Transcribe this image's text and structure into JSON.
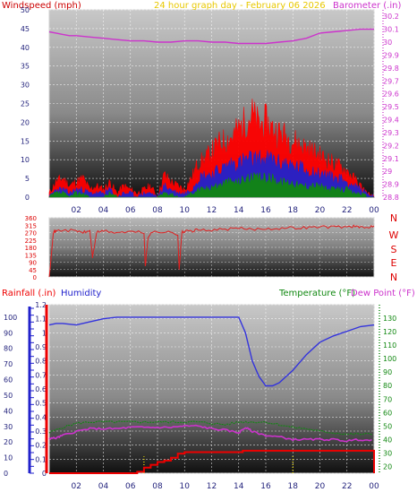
{
  "header": {
    "left_label": "Windspeed (mph)",
    "center_label": "24 hour graph day - February 06 2026",
    "right_label": "Barometer (.in)"
  },
  "colors": {
    "wind_label": "#cc0000",
    "center_label": "#e8c800",
    "barometer": "#cc33cc",
    "gust": "#ff0000",
    "avg": "#2222cc",
    "low": "#118811",
    "direction": "#e02020",
    "dir_labels": "#dd0000",
    "rain": "#ee0000",
    "rain_axis": "#ee0000",
    "humidity": "#3333dd",
    "humidity_axis": "#2222cc",
    "temperature": "#118811",
    "dewpoint": "#cc33cc",
    "dewpoint_label": "#cc33cc",
    "marker": "#ffee00",
    "grid": "#ffffff",
    "tick_text": "#1f1f7a"
  },
  "chart_data": [
    {
      "id": "wind_baro",
      "type": "line",
      "title": "24 hour graph day - February 06 2026",
      "x_ticks": [
        "02",
        "04",
        "06",
        "08",
        "10",
        "12",
        "14",
        "16",
        "18",
        "20",
        "22",
        "00"
      ],
      "y_left": {
        "label": "Windspeed (mph)",
        "ticks": [
          "0",
          "5",
          "10",
          "15",
          "20",
          "25",
          "30",
          "35",
          "40",
          "45",
          "50"
        ],
        "range": [
          0,
          50
        ]
      },
      "y_right": {
        "label": "Barometer (.in)",
        "ticks": [
          "28.8",
          "28.9",
          "29",
          "29.1",
          "29.2",
          "29.3",
          "29.4",
          "29.5",
          "29.6",
          "29.7",
          "29.8",
          "29.9",
          "30",
          "30.1",
          "30.2"
        ],
        "range": [
          28.8,
          30.25
        ]
      },
      "series": [
        {
          "name": "Barometer (.in)",
          "axis": "right",
          "x": [
            0,
            0.5,
            1,
            1.5,
            2,
            3,
            4,
            5,
            6,
            7,
            8,
            9,
            10,
            11,
            12,
            13,
            14,
            15,
            16,
            17,
            18,
            19,
            20,
            21,
            22,
            23,
            24
          ],
          "values": [
            30.08,
            30.07,
            30.06,
            30.05,
            30.05,
            30.04,
            30.03,
            30.02,
            30.01,
            30.01,
            30.0,
            30.0,
            30.01,
            30.01,
            30.0,
            30.0,
            29.99,
            29.99,
            29.99,
            30.0,
            30.01,
            30.03,
            30.07,
            30.08,
            30.09,
            30.1,
            30.1
          ]
        },
        {
          "name": "",
          "axis": "left",
          "x": [
            0,
            0.5,
            1,
            1.5,
            2,
            2.5,
            3,
            3.5,
            4,
            4.5,
            5,
            5.5,
            6,
            6.5,
            7,
            7.5,
            8,
            8.5,
            9,
            9.5,
            10,
            10.5,
            11,
            11.5,
            12,
            12.5,
            13,
            13.5,
            14,
            14.5,
            15,
            15.5,
            16,
            16.5,
            17,
            17.5,
            18,
            18.5,
            19,
            19.5,
            20,
            20.5,
            21,
            21.5,
            22,
            22.5,
            23,
            23.5,
            24
          ],
          "values": [
            1,
            4,
            5,
            3,
            4,
            5,
            2,
            3,
            2,
            4,
            1,
            3,
            2,
            1,
            2,
            3,
            0,
            6,
            4,
            3,
            2,
            5,
            9,
            10,
            12,
            14,
            15,
            16,
            18,
            20,
            22,
            19,
            20,
            18,
            17,
            16,
            15,
            14,
            13,
            12,
            11,
            10,
            9,
            8,
            7,
            5,
            3,
            1,
            0
          ]
        },
        {
          "name": "",
          "axis": "left",
          "x": [
            0,
            0.5,
            1,
            1.5,
            2,
            2.5,
            3,
            3.5,
            4,
            4.5,
            5,
            5.5,
            6,
            6.5,
            7,
            7.5,
            8,
            8.5,
            9,
            9.5,
            10,
            10.5,
            11,
            11.5,
            12,
            12.5,
            13,
            13.5,
            14,
            14.5,
            15,
            15.5,
            16,
            16.5,
            17,
            17.5,
            18,
            18.5,
            19,
            19.5,
            20,
            20.5,
            21,
            21.5,
            22,
            22.5,
            23,
            23.5,
            24
          ],
          "values": [
            0,
            2,
            2,
            1,
            2,
            2,
            1,
            1,
            1,
            2,
            0,
            1,
            1,
            0,
            1,
            1,
            0,
            3,
            2,
            1,
            1,
            2,
            5,
            6,
            6,
            7,
            8,
            9,
            9,
            10,
            10,
            10,
            10,
            10,
            9,
            9,
            8,
            8,
            7,
            7,
            6,
            6,
            5,
            5,
            4,
            3,
            2,
            1,
            0
          ]
        },
        {
          "name": "",
          "axis": "left",
          "x": [
            0,
            0.5,
            1,
            1.5,
            2,
            2.5,
            3,
            3.5,
            4,
            4.5,
            5,
            5.5,
            6,
            6.5,
            7,
            7.5,
            8,
            8.5,
            9,
            9.5,
            10,
            10.5,
            11,
            11.5,
            12,
            12.5,
            13,
            13.5,
            14,
            14.5,
            15,
            15.5,
            16,
            16.5,
            17,
            17.5,
            18,
            18.5,
            19,
            19.5,
            20,
            20.5,
            21,
            21.5,
            22,
            22.5,
            23,
            23.5,
            24
          ],
          "values": [
            0,
            1,
            1,
            0,
            1,
            1,
            0,
            0,
            0,
            1,
            0,
            0,
            0,
            0,
            0,
            0,
            0,
            1,
            1,
            0,
            0,
            1,
            2,
            2,
            3,
            3,
            4,
            4,
            4,
            5,
            5,
            5,
            5,
            5,
            4,
            4,
            4,
            3,
            3,
            3,
            3,
            2,
            2,
            2,
            2,
            1,
            1,
            0,
            0
          ]
        }
      ]
    },
    {
      "id": "direction",
      "type": "line",
      "x_ticks": [
        "02",
        "04",
        "06",
        "08",
        "10",
        "12",
        "14",
        "16",
        "18",
        "20",
        "22",
        "00"
      ],
      "y_left": {
        "ticks": [
          "0",
          "45",
          "90",
          "135",
          "180",
          "225",
          "270",
          "315",
          "360"
        ],
        "range": [
          0,
          360
        ]
      },
      "dir_labels": [
        "N",
        "W",
        "S",
        "E",
        "N"
      ],
      "series": [
        {
          "name": "",
          "x": [
            0,
            0.3,
            0.5,
            1,
            2,
            2.5,
            3,
            3.2,
            3.5,
            4,
            5,
            6,
            7,
            7.1,
            7.3,
            7.5,
            8,
            9,
            9.5,
            9.6,
            9.8,
            10,
            10.5,
            11,
            12,
            13,
            14,
            15,
            16,
            17,
            18,
            19,
            20,
            21,
            22,
            22.5,
            23,
            23.5,
            24
          ],
          "values": [
            0,
            270,
            280,
            285,
            280,
            270,
            280,
            120,
            270,
            280,
            270,
            275,
            270,
            60,
            240,
            270,
            275,
            270,
            260,
            40,
            270,
            275,
            280,
            285,
            285,
            290,
            295,
            290,
            295,
            295,
            300,
            300,
            305,
            305,
            305,
            310,
            300,
            300,
            315
          ]
        }
      ]
    },
    {
      "id": "rain_hum_temp",
      "type": "line",
      "x_ticks": [
        "02",
        "04",
        "06",
        "08",
        "10",
        "12",
        "14",
        "16",
        "18",
        "20",
        "22",
        "00"
      ],
      "y_left": {
        "label": "Rainfall (.in)",
        "ticks": [
          "0",
          "0.1",
          "0.2",
          "0.3",
          "0.4",
          "0.5",
          "0.6",
          "0.7",
          "0.8",
          "0.9",
          "1",
          "1.1",
          "1.2"
        ],
        "range": [
          0,
          1.2
        ]
      },
      "y_left_outer": {
        "label": "Humidity",
        "ticks": [
          "0",
          "10",
          "20",
          "30",
          "40",
          "50",
          "60",
          "70",
          "80",
          "90",
          "100"
        ],
        "range": [
          0,
          108
        ]
      },
      "y_right": {
        "label": "Temperature (°F)",
        "ticks": [
          "20",
          "30",
          "40",
          "50",
          "60",
          "70",
          "80",
          "90",
          "100",
          "110",
          "120",
          "130"
        ],
        "range": [
          15,
          140
        ]
      },
      "right_label_2": "Dew Point (°F)",
      "series": [
        {
          "name": "Humidity",
          "axis": "left_outer",
          "x": [
            0,
            0.5,
            1,
            2,
            3,
            4,
            5,
            6,
            7,
            8,
            9,
            10,
            11,
            12,
            13,
            14,
            14.5,
            15,
            15.5,
            16,
            16.5,
            17,
            18,
            19,
            20,
            21,
            22,
            23,
            24
          ],
          "values": [
            95,
            96,
            96,
            95,
            97,
            99,
            100,
            100,
            100,
            100,
            100,
            100,
            100,
            100,
            100,
            100,
            90,
            72,
            62,
            56,
            56,
            58,
            66,
            76,
            84,
            88,
            91,
            94,
            95
          ]
        },
        {
          "name": "Temperature (°F)",
          "axis": "right",
          "x": [
            0,
            1,
            2,
            3,
            4,
            5,
            6,
            7,
            8,
            9,
            10,
            11,
            12,
            13,
            14,
            15,
            16,
            17,
            18,
            19,
            20,
            21,
            22,
            23,
            24
          ],
          "values": [
            45,
            49,
            52,
            53,
            53,
            53,
            53,
            53,
            53,
            53,
            53,
            53,
            52,
            51,
            53,
            53,
            53,
            51,
            49,
            48,
            46,
            45,
            44,
            44,
            44
          ]
        },
        {
          "name": "Dew Point (°F)",
          "axis": "right",
          "x": [
            0,
            0.5,
            1,
            2,
            3,
            4,
            5,
            6,
            7,
            8,
            9,
            10,
            11,
            12,
            13,
            14,
            14.5,
            15,
            16,
            17,
            18,
            19,
            20,
            21,
            22,
            23,
            24
          ],
          "values": [
            41,
            41,
            43,
            46,
            48,
            48,
            48,
            49,
            49,
            49,
            49,
            50,
            50,
            48,
            47,
            45,
            49,
            46,
            43,
            42,
            40,
            40,
            40,
            40,
            39,
            40,
            39
          ]
        },
        {
          "name": "Rainfall (.in)",
          "axis": "left",
          "x": [
            0,
            6,
            6.5,
            7,
            7.5,
            8,
            8.5,
            9,
            9.5,
            10,
            14,
            14.3,
            15,
            16,
            17,
            18,
            19,
            20,
            21,
            22,
            23,
            23.9,
            24
          ],
          "values": [
            0,
            0,
            0.01,
            0.04,
            0.06,
            0.08,
            0.09,
            0.11,
            0.14,
            0.15,
            0.15,
            0.16,
            0.16,
            0.16,
            0.16,
            0.16,
            0.16,
            0.16,
            0.16,
            0.16,
            0.16,
            0.16,
            0
          ]
        }
      ]
    }
  ]
}
